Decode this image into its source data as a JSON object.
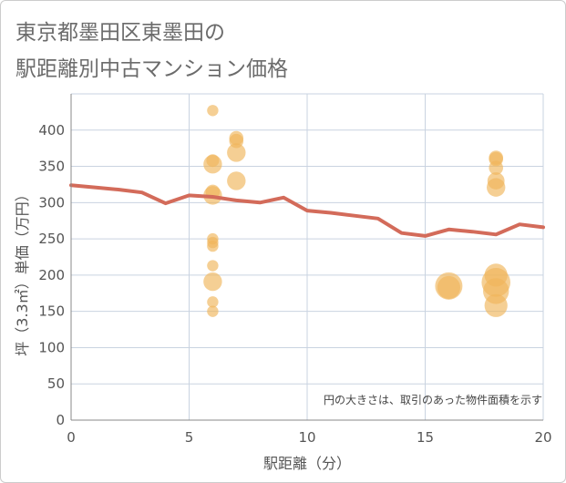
{
  "title": {
    "line1": "東京都墨田区東墨田の",
    "line2": "駅距離別中古マンション価格"
  },
  "chart_data": {
    "type": "scatter",
    "title": "東京都墨田区東墨田の駅距離別中古マンション価格",
    "xlabel": "駅距離（分）",
    "ylabel": "坪（3.3㎡）単価（万円）",
    "xlim": [
      0,
      20
    ],
    "ylim": [
      0,
      450
    ],
    "x_ticks": [
      0,
      5,
      10,
      15,
      20
    ],
    "y_ticks": [
      0,
      50,
      100,
      150,
      200,
      250,
      300,
      350,
      400
    ],
    "grid": true,
    "note": "円の大きさは、取引のあった物件面積を示す",
    "colors": {
      "bubble": "#f0b55a",
      "line": "#d36b5a",
      "grid": "#c9d3e0",
      "axis": "#888888"
    },
    "bubbles": [
      {
        "x": 6,
        "y": 427,
        "size": 0.2
      },
      {
        "x": 6,
        "y": 358,
        "size": 0.25
      },
      {
        "x": 6,
        "y": 353,
        "size": 0.45
      },
      {
        "x": 6,
        "y": 315,
        "size": 0.3
      },
      {
        "x": 6,
        "y": 310,
        "size": 0.45
      },
      {
        "x": 6,
        "y": 250,
        "size": 0.2
      },
      {
        "x": 6,
        "y": 245,
        "size": 0.2
      },
      {
        "x": 6,
        "y": 240,
        "size": 0.2
      },
      {
        "x": 6,
        "y": 213,
        "size": 0.2
      },
      {
        "x": 6,
        "y": 191,
        "size": 0.45
      },
      {
        "x": 6,
        "y": 163,
        "size": 0.2
      },
      {
        "x": 6,
        "y": 150,
        "size": 0.2
      },
      {
        "x": 7,
        "y": 389,
        "size": 0.3
      },
      {
        "x": 7,
        "y": 385,
        "size": 0.3
      },
      {
        "x": 7,
        "y": 369,
        "size": 0.45
      },
      {
        "x": 7,
        "y": 330,
        "size": 0.45
      },
      {
        "x": 16,
        "y": 185,
        "size": 0.75
      },
      {
        "x": 16,
        "y": 183,
        "size": 0.6
      },
      {
        "x": 18,
        "y": 362,
        "size": 0.3
      },
      {
        "x": 18,
        "y": 360,
        "size": 0.3
      },
      {
        "x": 18,
        "y": 348,
        "size": 0.3
      },
      {
        "x": 18,
        "y": 330,
        "size": 0.4
      },
      {
        "x": 18,
        "y": 321,
        "size": 0.45
      },
      {
        "x": 18,
        "y": 200,
        "size": 0.6
      },
      {
        "x": 18,
        "y": 190,
        "size": 0.8
      },
      {
        "x": 18,
        "y": 178,
        "size": 0.7
      },
      {
        "x": 18,
        "y": 158,
        "size": 0.6
      }
    ],
    "series": [
      {
        "x": [
          0,
          1,
          2,
          3,
          4,
          5,
          6,
          7,
          8,
          9,
          10,
          11,
          12,
          13,
          14,
          15,
          16,
          17,
          18,
          19,
          20
        ],
        "values": [
          324,
          321,
          318,
          314,
          299,
          310,
          308,
          303,
          300,
          307,
          289,
          286,
          282,
          278,
          258,
          254,
          263,
          260,
          256,
          270,
          266
        ]
      }
    ]
  }
}
